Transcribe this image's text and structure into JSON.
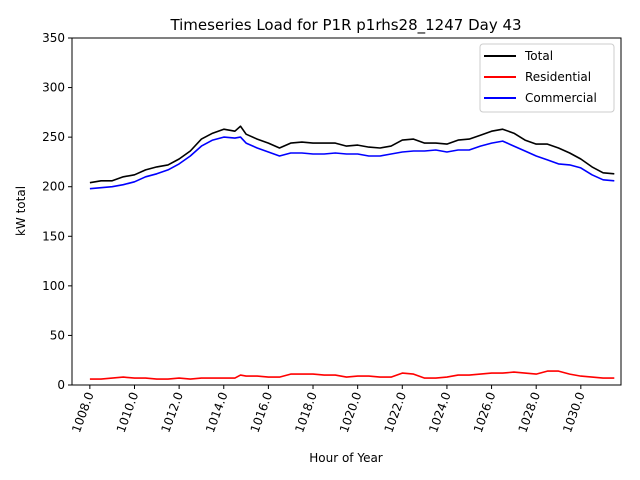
{
  "chart_data": {
    "type": "line",
    "title": "Timeseries Load for P1R p1rhs28_1247  Day 43",
    "xlabel": "Hour of Year",
    "ylabel": "kW total",
    "xlim": [
      1007.2,
      1031.8
    ],
    "ylim": [
      0,
      350
    ],
    "xticks": [
      1008,
      1010,
      1012,
      1014,
      1016,
      1018,
      1020,
      1022,
      1024,
      1026,
      1028,
      1030
    ],
    "xtick_labels": [
      "1008.0",
      "1010.0",
      "1012.0",
      "1014.0",
      "1016.0",
      "1018.0",
      "1020.0",
      "1022.0",
      "1024.0",
      "1026.0",
      "1028.0",
      "1030.0"
    ],
    "yticks": [
      0,
      50,
      100,
      150,
      200,
      250,
      300,
      350
    ],
    "ytick_labels": [
      "0",
      "50",
      "100",
      "150",
      "200",
      "250",
      "300",
      "350"
    ],
    "legend_position": "top-right",
    "series": [
      {
        "name": "Total",
        "color": "#000000",
        "x": [
          1008.0,
          1008.5,
          1009.0,
          1009.5,
          1010.0,
          1010.5,
          1011.0,
          1011.5,
          1012.0,
          1012.5,
          1013.0,
          1013.5,
          1014.0,
          1014.5,
          1014.75,
          1015.0,
          1015.5,
          1016.0,
          1016.5,
          1017.0,
          1017.5,
          1018.0,
          1018.5,
          1019.0,
          1019.5,
          1020.0,
          1020.5,
          1021.0,
          1021.5,
          1022.0,
          1022.5,
          1023.0,
          1023.5,
          1024.0,
          1024.5,
          1025.0,
          1025.5,
          1026.0,
          1026.5,
          1027.0,
          1027.5,
          1028.0,
          1028.5,
          1029.0,
          1029.5,
          1030.0,
          1030.5,
          1031.0,
          1031.5
        ],
        "values": [
          204,
          206,
          206,
          210,
          212,
          217,
          220,
          222,
          228,
          236,
          248,
          254,
          258,
          256,
          261,
          253,
          248,
          244,
          239,
          244,
          245,
          244,
          244,
          244,
          241,
          242,
          240,
          239,
          241,
          247,
          248,
          244,
          244,
          243,
          247,
          248,
          252,
          256,
          258,
          254,
          247,
          243,
          243,
          239,
          234,
          228,
          220,
          214,
          213
        ]
      },
      {
        "name": "Residential",
        "color": "#ff0000",
        "x": [
          1008.0,
          1008.5,
          1009.0,
          1009.5,
          1010.0,
          1010.5,
          1011.0,
          1011.5,
          1012.0,
          1012.5,
          1013.0,
          1013.5,
          1014.0,
          1014.5,
          1014.75,
          1015.0,
          1015.5,
          1016.0,
          1016.5,
          1017.0,
          1017.5,
          1018.0,
          1018.5,
          1019.0,
          1019.5,
          1020.0,
          1020.5,
          1021.0,
          1021.5,
          1022.0,
          1022.5,
          1023.0,
          1023.5,
          1024.0,
          1024.5,
          1025.0,
          1025.5,
          1026.0,
          1026.5,
          1027.0,
          1027.5,
          1028.0,
          1028.5,
          1029.0,
          1029.5,
          1030.0,
          1030.5,
          1031.0,
          1031.5
        ],
        "values": [
          6,
          6,
          7,
          8,
          7,
          7,
          6,
          6,
          7,
          6,
          7,
          7,
          7,
          7,
          10,
          9,
          9,
          8,
          8,
          11,
          11,
          11,
          10,
          10,
          8,
          9,
          9,
          8,
          8,
          12,
          11,
          7,
          7,
          8,
          10,
          10,
          11,
          12,
          12,
          13,
          12,
          11,
          14,
          14,
          11,
          9,
          8,
          7,
          7
        ]
      },
      {
        "name": "Commercial",
        "color": "#0000ff",
        "x": [
          1008.0,
          1008.5,
          1009.0,
          1009.5,
          1010.0,
          1010.5,
          1011.0,
          1011.5,
          1012.0,
          1012.5,
          1013.0,
          1013.5,
          1014.0,
          1014.5,
          1014.75,
          1015.0,
          1015.5,
          1016.0,
          1016.5,
          1017.0,
          1017.5,
          1018.0,
          1018.5,
          1019.0,
          1019.5,
          1020.0,
          1020.5,
          1021.0,
          1021.5,
          1022.0,
          1022.5,
          1023.0,
          1023.5,
          1024.0,
          1024.5,
          1025.0,
          1025.5,
          1026.0,
          1026.5,
          1027.0,
          1027.5,
          1028.0,
          1028.5,
          1029.0,
          1029.5,
          1030.0,
          1030.5,
          1031.0,
          1031.5
        ],
        "values": [
          198,
          199,
          200,
          202,
          205,
          210,
          213,
          217,
          223,
          231,
          241,
          247,
          250,
          249,
          250,
          244,
          239,
          235,
          231,
          234,
          234,
          233,
          233,
          234,
          233,
          233,
          231,
          231,
          233,
          235,
          236,
          236,
          237,
          235,
          237,
          237,
          241,
          244,
          246,
          241,
          236,
          231,
          227,
          223,
          222,
          219,
          212,
          207,
          206
        ]
      }
    ]
  }
}
